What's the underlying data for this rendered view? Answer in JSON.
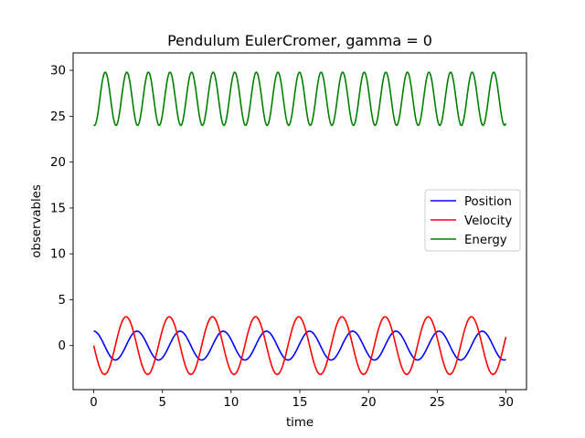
{
  "chart_data": {
    "type": "line",
    "title": "Pendulum EulerCromer, gamma = 0",
    "xlabel": "time",
    "ylabel": "observables",
    "xlim": [
      -1.5,
      31.5
    ],
    "ylim": [
      -4.8,
      31.9
    ],
    "xticks": [
      0,
      5,
      10,
      15,
      20,
      25,
      30
    ],
    "yticks": [
      0,
      5,
      10,
      15,
      20,
      25,
      30
    ],
    "grid": false,
    "legend_position": "center-right",
    "series": [
      {
        "name": "Position",
        "color": "#0000ff",
        "model": "sine",
        "amplitude": 1.57,
        "period": 3.142,
        "phase": 1.5708,
        "offset": 0,
        "x_start": 0,
        "x_end": 30
      },
      {
        "name": "Velocity",
        "color": "#ff0000",
        "model": "sine",
        "amplitude": 3.14,
        "period": 3.142,
        "phase": 3.1416,
        "offset": 0,
        "x_start": 0,
        "x_end": 30
      },
      {
        "name": "Energy",
        "color": "#008000",
        "model": "sine",
        "amplitude": 2.9,
        "period": 1.571,
        "phase": 4.5,
        "offset": 26.9,
        "x_start": 0,
        "x_end": 30
      }
    ]
  }
}
